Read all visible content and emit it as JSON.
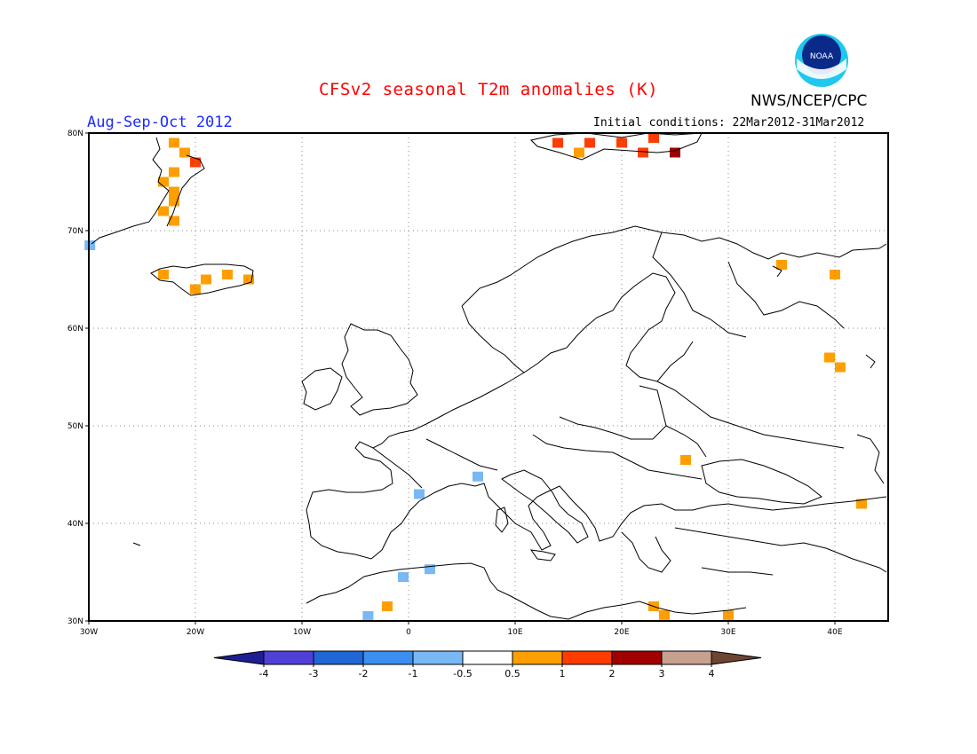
{
  "header": {
    "title": "CFSv2 seasonal T2m anomalies (K)",
    "org": "NWS/NCEP/CPC",
    "logo_text": "NOAA",
    "period": "Aug-Sep-Oct 2012",
    "initial_conditions": "Initial conditions: 22Mar2012-31Mar2012"
  },
  "map": {
    "lon_range": [
      -30,
      45
    ],
    "lat_range": [
      30,
      80
    ],
    "grid": true,
    "coastline_color": "#000000"
  },
  "axes": {
    "x_ticks": [
      "30W",
      "20W",
      "10W",
      "0",
      "10E",
      "20E",
      "30E",
      "40E"
    ],
    "y_ticks": [
      "80N",
      "70N",
      "60N",
      "50N",
      "40N",
      "30N"
    ]
  },
  "colorbar": {
    "colors": [
      "#1e1e94",
      "#5040d8",
      "#2066d4",
      "#3c8ef0",
      "#78b8f4",
      "#ffffff",
      "#ff9e00",
      "#ff3c00",
      "#a00000",
      "#c8a090",
      "#6e4432"
    ],
    "labels": [
      "-4",
      "-3",
      "-2",
      "-1",
      "-0.5",
      "0.5",
      "1",
      "2",
      "3",
      "4"
    ]
  },
  "chart_data": {
    "type": "heatmap",
    "title": "CFSv2 seasonal T2m anomalies (K)",
    "units": "K",
    "levels": [
      -4,
      -3,
      -2,
      -1,
      -0.5,
      0.5,
      1,
      2,
      3,
      4
    ],
    "anomaly_cells": [
      {
        "lon": -22,
        "lat": 79,
        "cls": "0.5-1"
      },
      {
        "lon": -21,
        "lat": 78,
        "cls": "0.5-1"
      },
      {
        "lon": -20,
        "lat": 77,
        "cls": "1-2"
      },
      {
        "lon": -22,
        "lat": 76,
        "cls": "0.5-1"
      },
      {
        "lon": -23,
        "lat": 75,
        "cls": "0.5-1"
      },
      {
        "lon": -22,
        "lat": 74,
        "cls": "0.5-1"
      },
      {
        "lon": -22,
        "lat": 73,
        "cls": "0.5-1"
      },
      {
        "lon": -23,
        "lat": 72,
        "cls": "0.5-1"
      },
      {
        "lon": -22,
        "lat": 71,
        "cls": "0.5-1"
      },
      {
        "lon": -23,
        "lat": 65.5,
        "cls": "0.5-1"
      },
      {
        "lon": -19,
        "lat": 65,
        "cls": "0.5-1"
      },
      {
        "lon": -17,
        "lat": 65.5,
        "cls": "0.5-1"
      },
      {
        "lon": -15,
        "lat": 65,
        "cls": "0.5-1"
      },
      {
        "lon": -20,
        "lat": 64,
        "cls": "0.5-1"
      },
      {
        "lon": -29.9,
        "lat": 68.5,
        "cls": "-1--0.5"
      },
      {
        "lon": 14,
        "lat": 79,
        "cls": "1-2"
      },
      {
        "lon": 17,
        "lat": 79,
        "cls": "1-2"
      },
      {
        "lon": 20,
        "lat": 79,
        "cls": "1-2"
      },
      {
        "lon": 23,
        "lat": 79.5,
        "cls": "1-2"
      },
      {
        "lon": 16,
        "lat": 78,
        "cls": "0.5-1"
      },
      {
        "lon": 22,
        "lat": 78,
        "cls": "1-2"
      },
      {
        "lon": 25,
        "lat": 78,
        "cls": "2-3"
      },
      {
        "lon": 35,
        "lat": 66.5,
        "cls": "0.5-1"
      },
      {
        "lon": 40,
        "lat": 65.5,
        "cls": "0.5-1"
      },
      {
        "lon": 39.5,
        "lat": 57,
        "cls": "0.5-1"
      },
      {
        "lon": 40.5,
        "lat": 56,
        "cls": "0.5-1"
      },
      {
        "lon": 26,
        "lat": 46.5,
        "cls": "0.5-1"
      },
      {
        "lon": 42.5,
        "lat": 42,
        "cls": "0.5-1"
      },
      {
        "lon": 1,
        "lat": 43,
        "cls": "-1--0.5"
      },
      {
        "lon": 6.5,
        "lat": 44.8,
        "cls": "-1--0.5"
      },
      {
        "lon": -0.5,
        "lat": 34.5,
        "cls": "-1--0.5"
      },
      {
        "lon": 2,
        "lat": 35.3,
        "cls": "-1--0.5"
      },
      {
        "lon": -3.8,
        "lat": 30.5,
        "cls": "-1--0.5"
      },
      {
        "lon": -2,
        "lat": 31.5,
        "cls": "0.5-1"
      },
      {
        "lon": 23,
        "lat": 31.5,
        "cls": "0.5-1"
      },
      {
        "lon": 24,
        "lat": 30.6,
        "cls": "0.5-1"
      },
      {
        "lon": 30,
        "lat": 30.6,
        "cls": "0.5-1"
      }
    ]
  }
}
